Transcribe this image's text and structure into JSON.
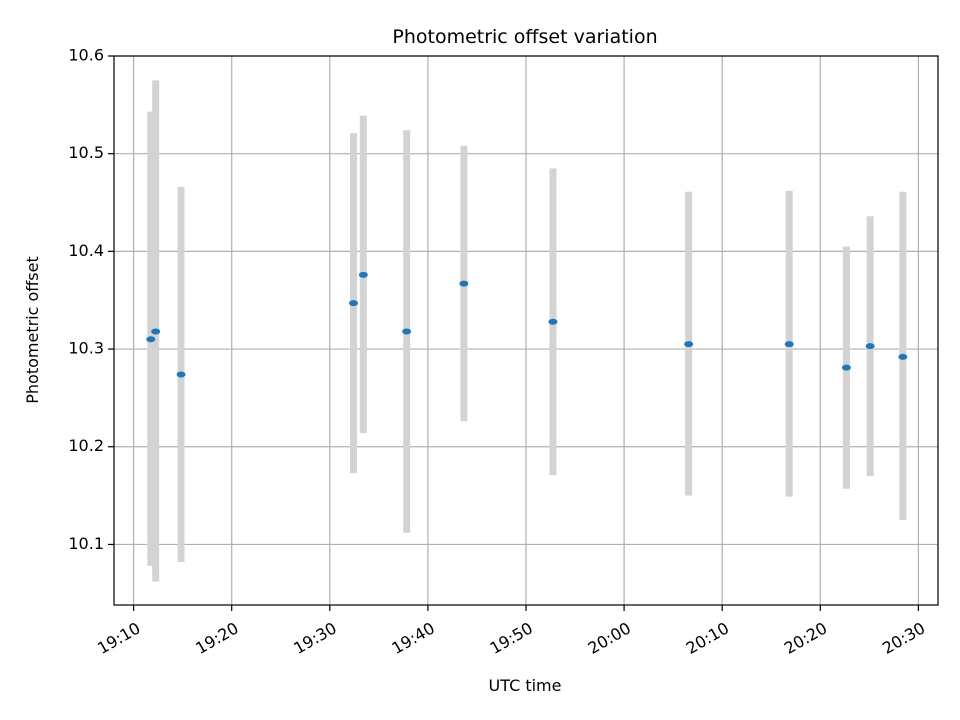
{
  "chart_data": {
    "type": "scatter",
    "title": "Photometric offset variation",
    "xlabel": "UTC time",
    "ylabel": "Photometric offset",
    "x_ticks": [
      "19:10",
      "19:20",
      "19:30",
      "19:40",
      "19:50",
      "20:00",
      "20:10",
      "20:20",
      "20:30"
    ],
    "y_ticks": [
      "10.1",
      "10.2",
      "10.3",
      "10.4",
      "10.5",
      "10.6"
    ],
    "xlim": [
      "19:08",
      "20:32"
    ],
    "ylim": [
      10.038,
      10.6
    ],
    "grid": true,
    "error_bar_style": "vertical bars",
    "colors": {
      "points": "#1f77b4",
      "error_bars": "#d3d3d3",
      "grid": "#b0b0b0"
    },
    "points": [
      {
        "x": "19:11:45",
        "y": 10.31,
        "ylow": 10.078,
        "yhigh": 10.543
      },
      {
        "x": "19:12:15",
        "y": 10.318,
        "ylow": 10.062,
        "yhigh": 10.575
      },
      {
        "x": "19:14:50",
        "y": 10.274,
        "ylow": 10.082,
        "yhigh": 10.466
      },
      {
        "x": "19:32:25",
        "y": 10.347,
        "ylow": 10.173,
        "yhigh": 10.521
      },
      {
        "x": "19:33:25",
        "y": 10.376,
        "ylow": 10.214,
        "yhigh": 10.539
      },
      {
        "x": "19:37:50",
        "y": 10.318,
        "ylow": 10.112,
        "yhigh": 10.524
      },
      {
        "x": "19:43:40",
        "y": 10.367,
        "ylow": 10.226,
        "yhigh": 10.508
      },
      {
        "x": "19:52:45",
        "y": 10.328,
        "ylow": 10.171,
        "yhigh": 10.485
      },
      {
        "x": "20:06:35",
        "y": 10.305,
        "ylow": 10.15,
        "yhigh": 10.461
      },
      {
        "x": "20:16:50",
        "y": 10.305,
        "ylow": 10.149,
        "yhigh": 10.462
      },
      {
        "x": "20:22:40",
        "y": 10.281,
        "ylow": 10.157,
        "yhigh": 10.405
      },
      {
        "x": "20:25:05",
        "y": 10.303,
        "ylow": 10.17,
        "yhigh": 10.436
      },
      {
        "x": "20:28:25",
        "y": 10.292,
        "ylow": 10.125,
        "yhigh": 10.461
      }
    ]
  }
}
